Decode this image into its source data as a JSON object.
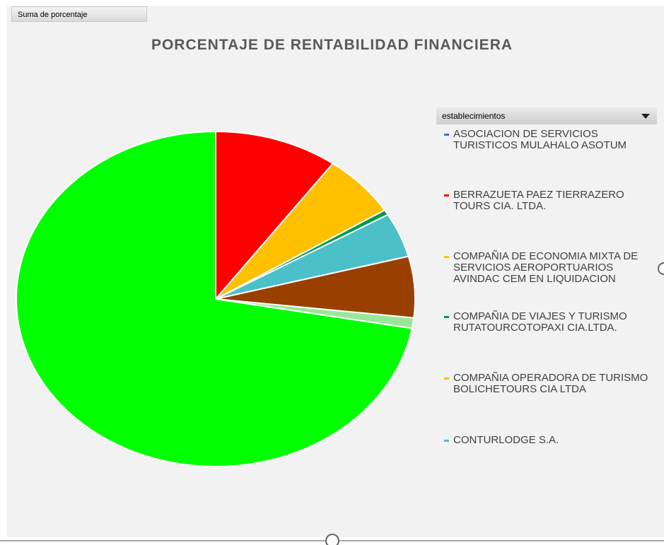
{
  "chart_data": {
    "type": "pie",
    "button": "Suma de porcentaje",
    "title": "PORCENTAJE DE RENTABILIDAD  FINANCIERA",
    "legend_title": "establecimientos",
    "categories": [
      "ASOCIACION DE SERVICIOS TURISTICOS MULAHALO ASOTUM",
      "BERRAZUETA PAEZ TIERRAZERO TOURS CIA. LTDA.",
      "COMPAÑIA DE ECONOMIA MIXTA DE SERVICIOS AEROPORTUARIOS AVINDAC CEM EN LIQUIDACION",
      "COMPAÑIA DE VIAJES Y TURISMO RUTATOURCOTOPAXI CIA.LTDA.",
      "COMPAÑIA OPERADORA DE TURISMO BOLICHETOURS CIA LTDA",
      "CONTURLODGE S.A.",
      null,
      null,
      null
    ],
    "values": [
      0,
      10,
      6.1,
      0.5,
      0,
      4.3,
      5.9,
      1,
      72.2
    ],
    "colors": [
      "#4472c4",
      "#ff0000",
      "#ffc000",
      "#00994c",
      "#ffc000",
      "#4bc0c8",
      "#993f00",
      "#99e699",
      "#00ff00"
    ]
  }
}
